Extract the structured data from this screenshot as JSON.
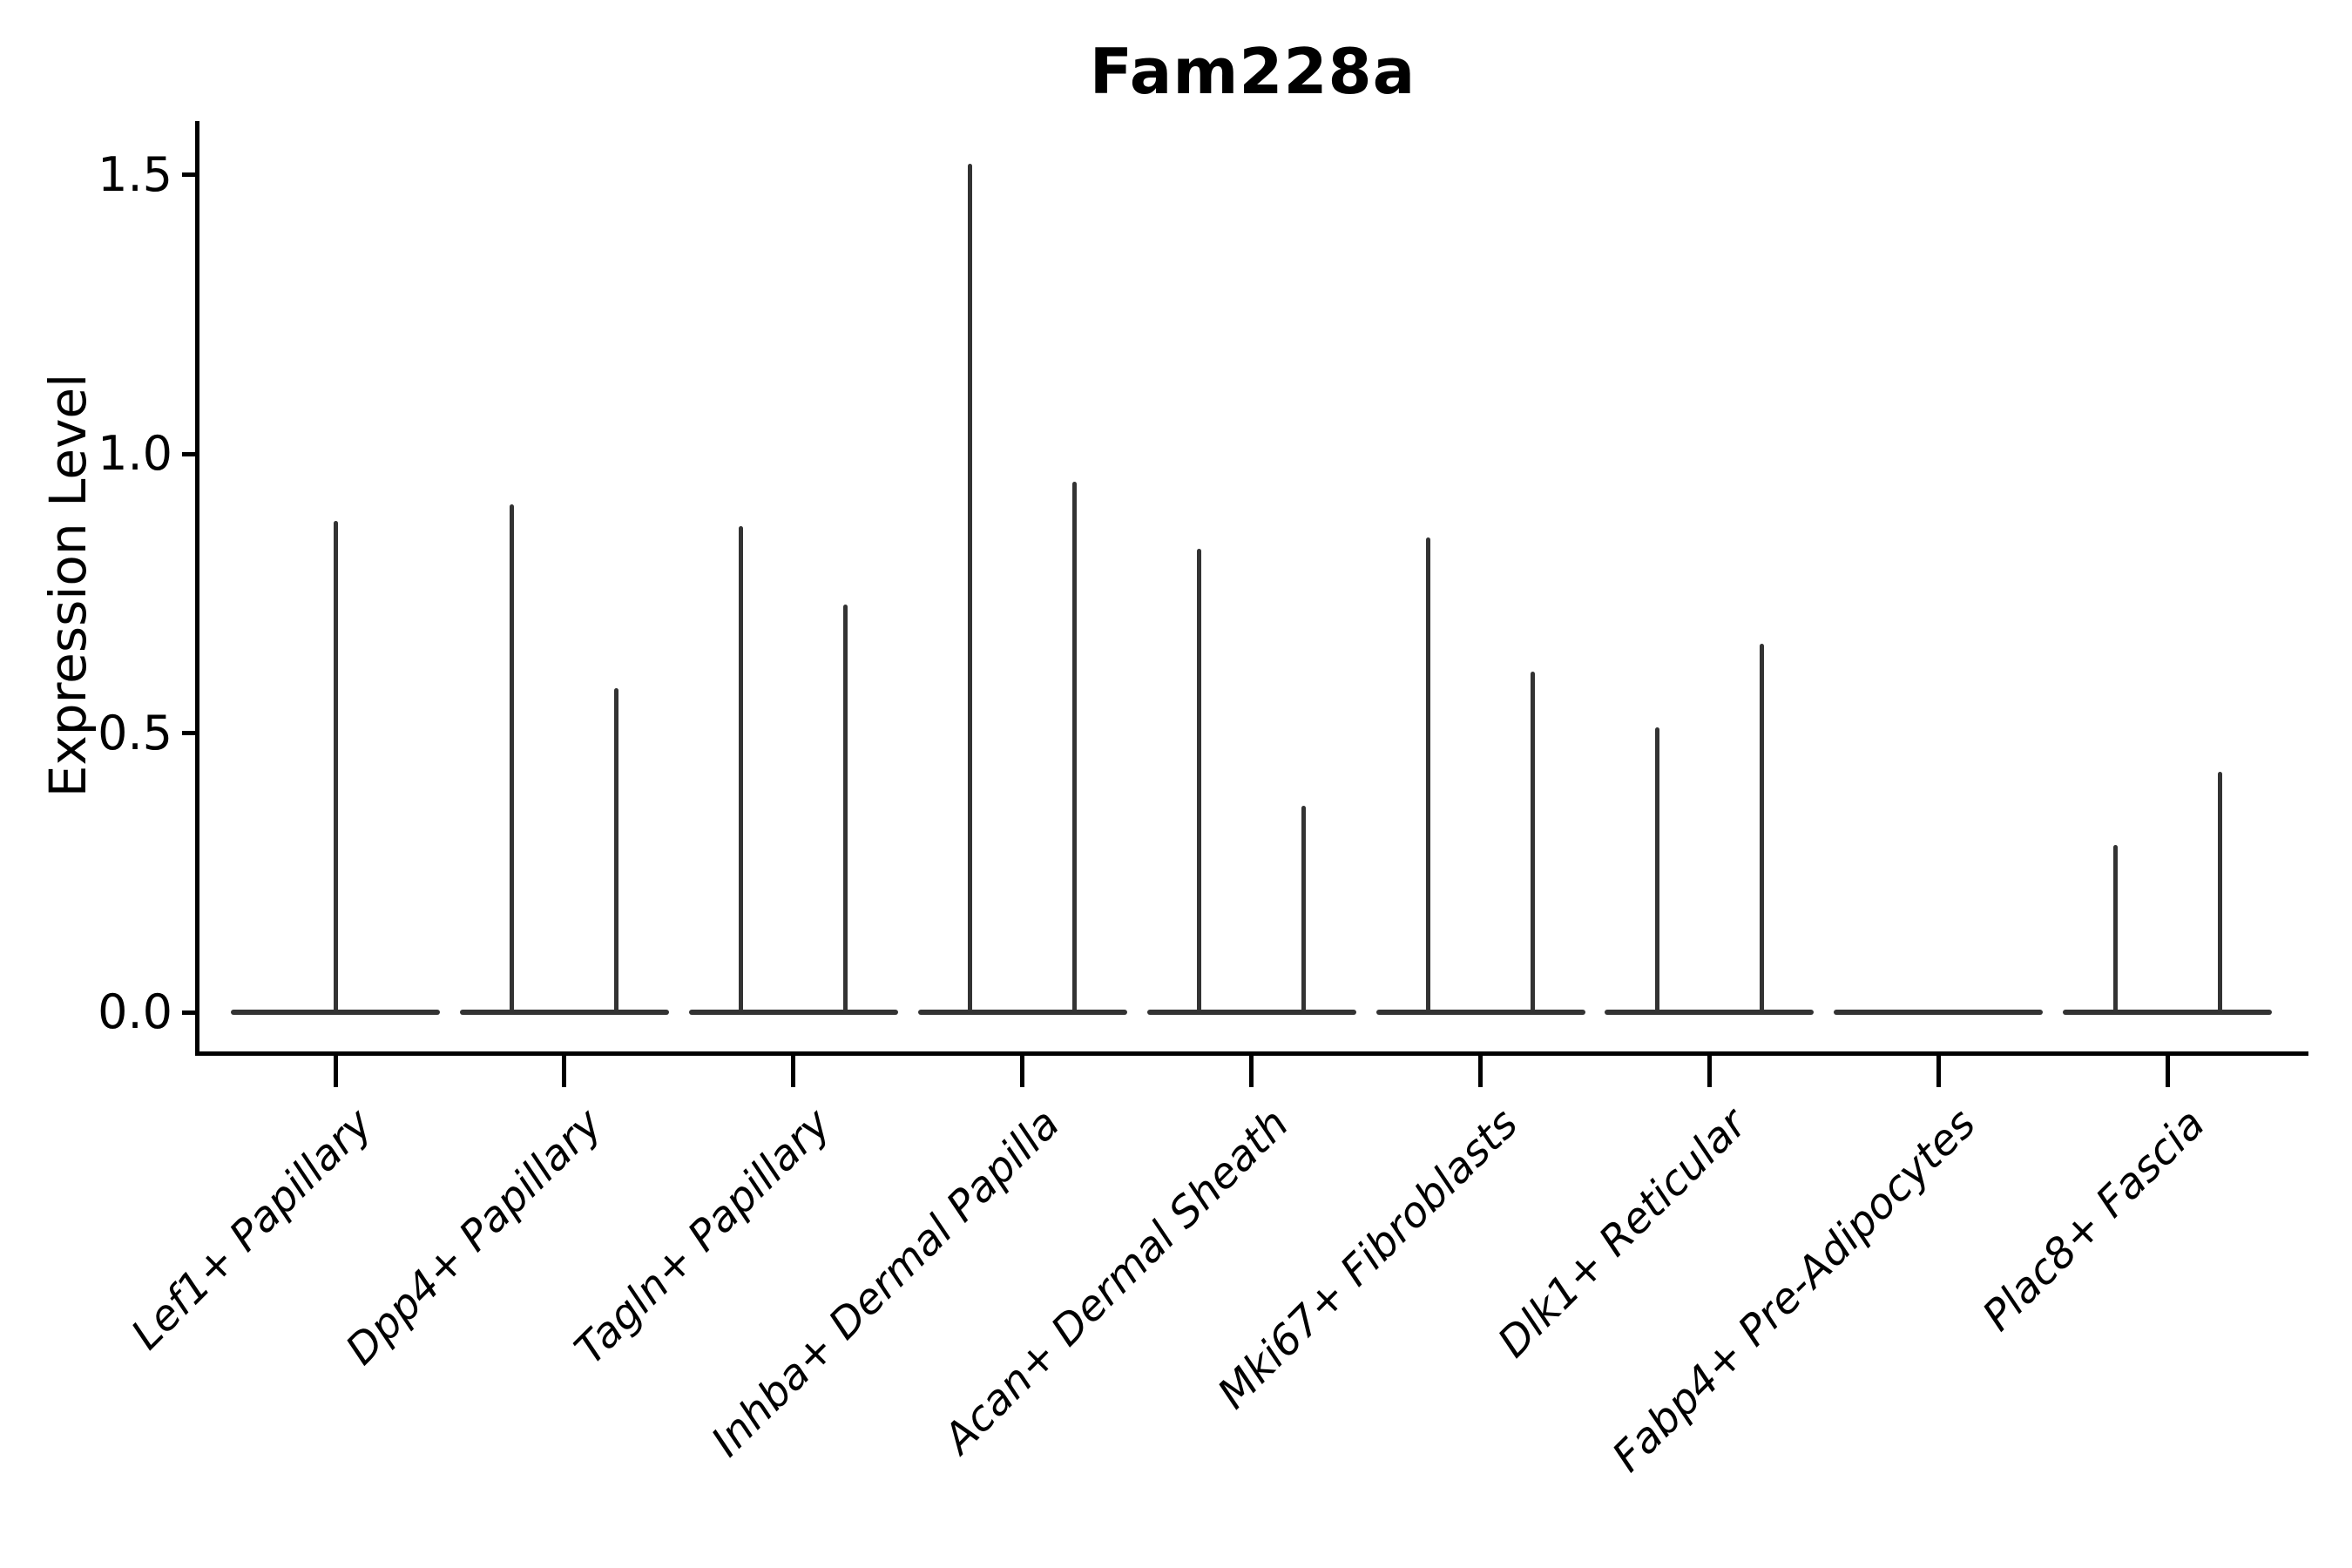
{
  "chart_data": {
    "type": "violin",
    "title": "Fam228a",
    "ylabel": "Expression Level",
    "xlabel": "",
    "grid": false,
    "legend": "none",
    "ylim": [
      -0.07,
      1.6
    ],
    "yticks": [
      "0.0",
      "0.5",
      "1.0",
      "1.5"
    ],
    "categories": [
      "Lef1+ Papillary",
      "Dpp4+ Papillary",
      "Tagln+ Papillary",
      "Inhba+ Dermal Papilla",
      "Acan+ Dermal Sheath",
      "Mki67+ Fibroblasts",
      "Dlk1+ Reticular",
      "Fabp4+ Pre-Adipocytes",
      "Plac8+ Fascia"
    ],
    "violins_max_expression": [
      [
        0.88
      ],
      [
        0.91,
        0.58
      ],
      [
        0.87,
        0.73
      ],
      [
        1.52,
        0.95
      ],
      [
        0.83,
        0.37
      ],
      [
        0.85,
        0.61
      ],
      [
        0.51,
        0.66
      ],
      [
        0,
        0
      ],
      [
        0.3,
        0.43
      ]
    ],
    "violin_color": "#333333",
    "axis_color": "#000000"
  }
}
